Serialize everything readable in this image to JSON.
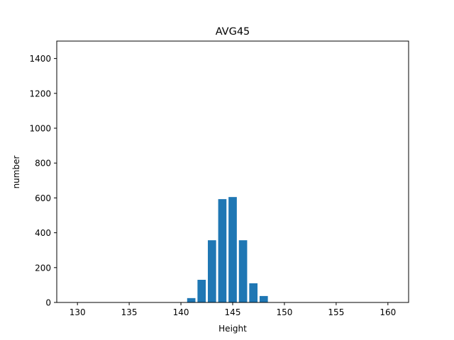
{
  "chart_data": {
    "type": "bar",
    "title": "AVG45",
    "xlabel": "Height",
    "ylabel": "number",
    "xlim": [
      128,
      162
    ],
    "ylim": [
      0,
      1500
    ],
    "xticks": [
      130,
      135,
      140,
      145,
      150,
      155,
      160
    ],
    "yticks": [
      0,
      200,
      400,
      600,
      800,
      1000,
      1200,
      1400
    ],
    "bar_width": 0.8,
    "color": "#1f77b4",
    "grid": false,
    "bars": [
      {
        "x": 141,
        "value": 25
      },
      {
        "x": 142,
        "value": 130
      },
      {
        "x": 143,
        "value": 357
      },
      {
        "x": 144,
        "value": 593
      },
      {
        "x": 145,
        "value": 605
      },
      {
        "x": 146,
        "value": 357
      },
      {
        "x": 147,
        "value": 110
      },
      {
        "x": 148,
        "value": 37
      }
    ]
  }
}
